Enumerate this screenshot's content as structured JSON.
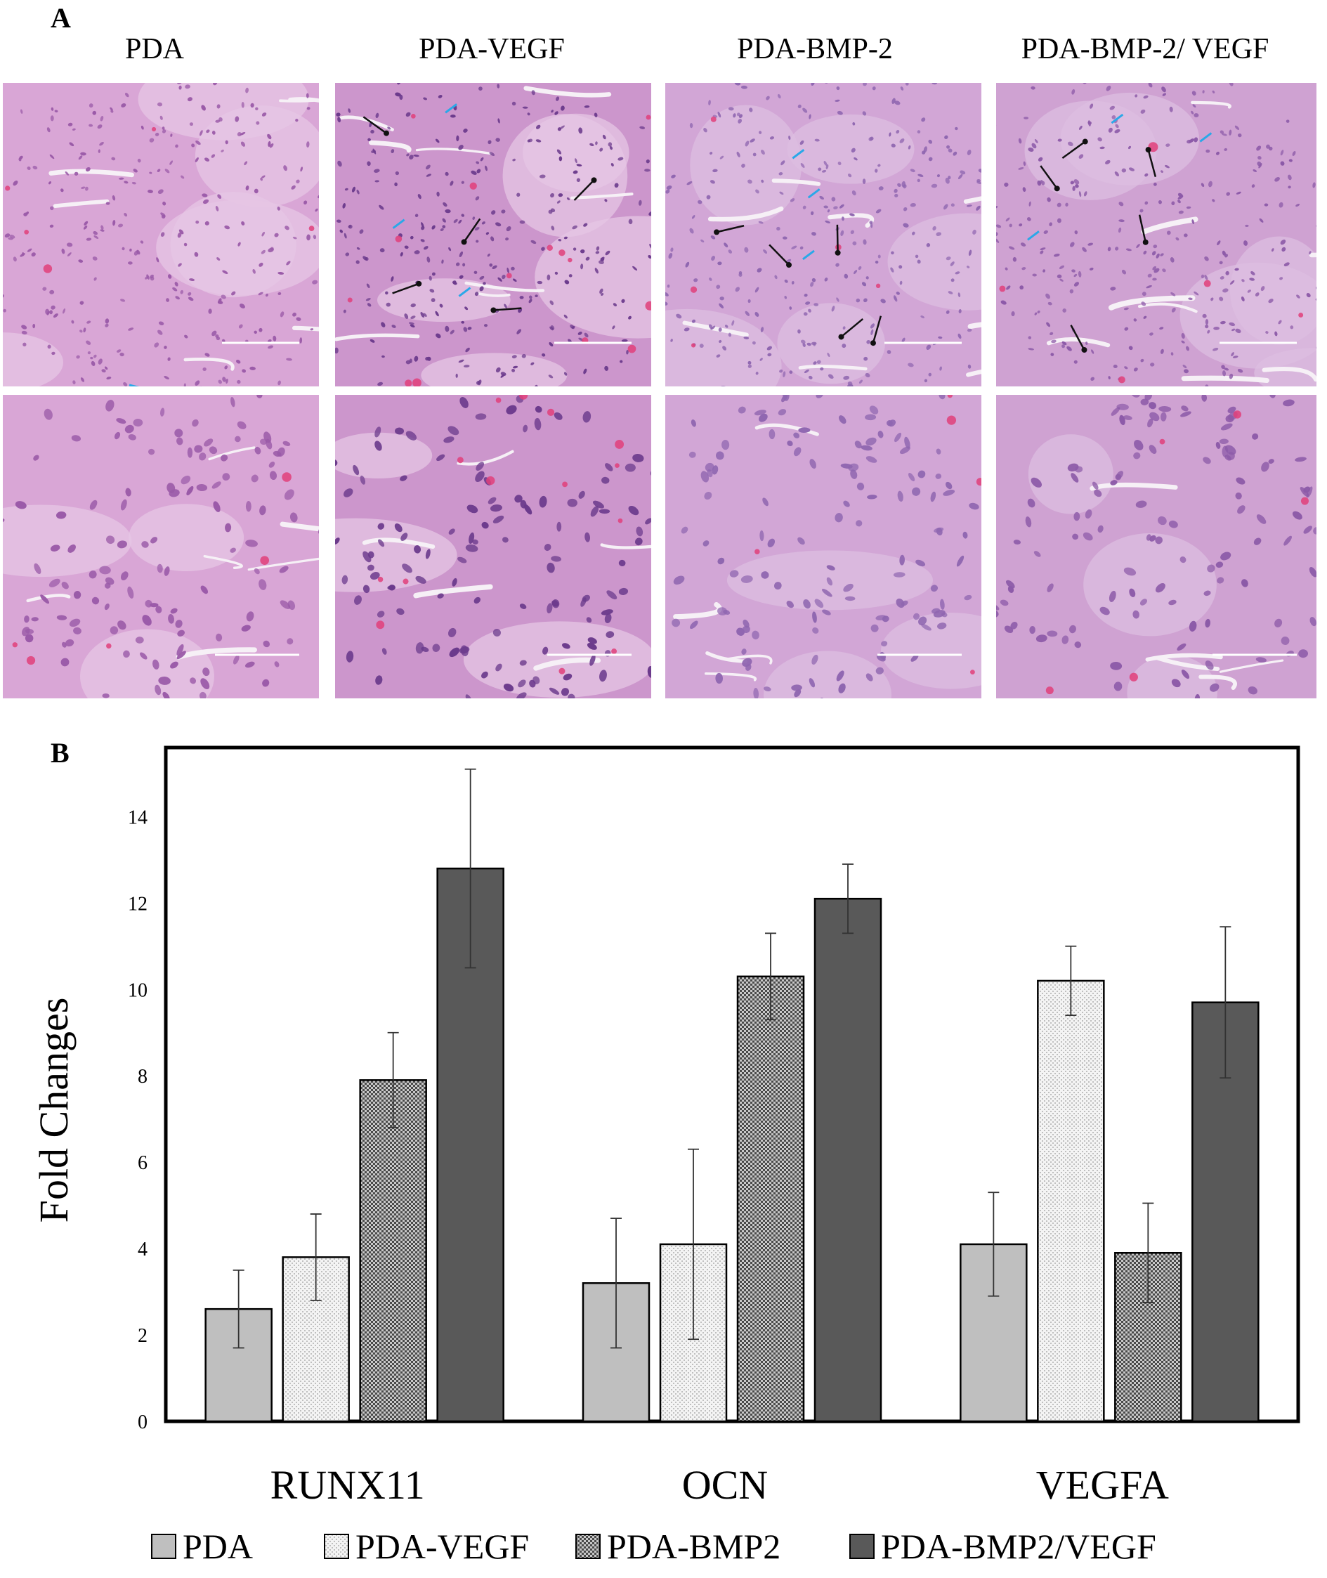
{
  "panel_a": {
    "letter": "A",
    "columns": [
      {
        "title": "PDA",
        "tone": "#d9a6d6",
        "stain": "#9a5aa8"
      },
      {
        "title": "PDA-VEGF",
        "tone": "#cc96cc",
        "stain": "#6b3a8c"
      },
      {
        "title": "PDA-BMP-2",
        "tone": "#d2a6d6",
        "stain": "#8f66b0"
      },
      {
        "title": "PDA-BMP-2/ VEGF",
        "tone": "#cfa2d2",
        "stain": "#8c5aa8"
      }
    ]
  },
  "panel_b": {
    "letter": "B"
  },
  "chart_data": {
    "type": "bar",
    "categories": [
      "RUNX11",
      "OCN",
      "VEGFA"
    ],
    "series": [
      {
        "name": "PDA",
        "values": [
          2.6,
          3.2,
          4.1
        ],
        "errors": [
          0.9,
          1.5,
          1.2
        ],
        "fill": "#bfbfbf",
        "pattern": "solid"
      },
      {
        "name": "PDA-VEGF",
        "values": [
          3.8,
          4.1,
          10.2
        ],
        "errors": [
          1.0,
          2.2,
          0.8
        ],
        "fill": "#f2f2f2",
        "pattern": "dots"
      },
      {
        "name": "PDA-BMP2",
        "values": [
          7.9,
          10.3,
          3.9
        ],
        "errors": [
          1.1,
          1.0,
          1.15
        ],
        "fill": "#9a9a9a",
        "pattern": "checker"
      },
      {
        "name": "PDA-BMP2/VEGF",
        "values": [
          12.8,
          12.1,
          9.7
        ],
        "errors": [
          2.3,
          0.8,
          1.75
        ],
        "fill": "#595959",
        "pattern": "solid"
      }
    ],
    "ylabel": "Fold Changes",
    "xlabel": "",
    "ylim": [
      0,
      15.6
    ],
    "yticks": [
      0,
      2,
      4,
      6,
      8,
      10,
      12,
      14
    ],
    "legend_position": "bottom",
    "grid": false
  }
}
